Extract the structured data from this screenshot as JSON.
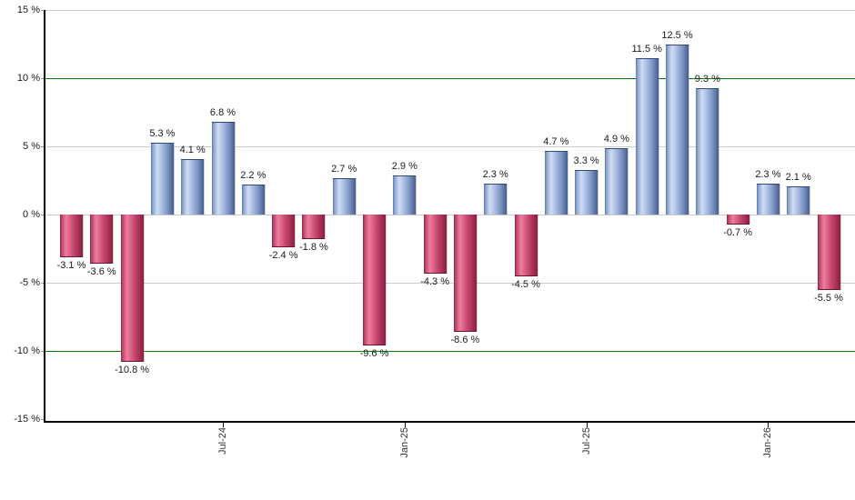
{
  "chart_data": {
    "type": "bar",
    "title": "",
    "xlabel": "",
    "ylabel": "",
    "ylim": [
      -15,
      15
    ],
    "grid": true,
    "legend_position": "none",
    "y_tick_labels": [
      "15 %",
      "10 %",
      "5 %",
      "0 %",
      "-5 %",
      "-10 %",
      "-15 %"
    ],
    "y_tick_values": [
      15,
      10,
      5,
      0,
      -5,
      -10,
      -15
    ],
    "highlight_gridline_values": [
      10,
      -10
    ],
    "values": [
      -3.1,
      -3.6,
      -10.8,
      5.3,
      4.1,
      6.8,
      2.2,
      -2.4,
      -1.8,
      2.7,
      -9.6,
      2.9,
      -4.3,
      -8.6,
      2.3,
      -4.5,
      4.7,
      3.3,
      4.9,
      11.5,
      12.5,
      9.3,
      -0.7,
      2.3,
      2.1,
      -5.5
    ],
    "bar_labels": [
      "-3.1 %",
      "-3.6 %",
      "-10.8 %",
      "5.3 %",
      "4.1 %",
      "6.8 %",
      "2.2 %",
      "-2.4 %",
      "-1.8 %",
      "2.7 %",
      "-9.6 %",
      "2.9 %",
      "-4.3 %",
      "-8.6 %",
      "2.3 %",
      "-4.5 %",
      "4.7 %",
      "3.3 %",
      "4.9 %",
      "11.5 %",
      "12.5 %",
      "9.3 %",
      "-0.7 %",
      "2.3 %",
      "2.1 %",
      "-5.5 %"
    ],
    "x_ticks": [
      {
        "label": "Jul-24",
        "bar_index": 5
      },
      {
        "label": "Jan-25",
        "bar_index": 11
      },
      {
        "label": "Jul-25",
        "bar_index": 17
      },
      {
        "label": "Jan-26",
        "bar_index": 23
      }
    ],
    "colors": {
      "positive_bar": "#9bb0da",
      "negative_bar": "#cc4d73",
      "highlight_gridline": "#008000",
      "gridline": "#cccccc",
      "axis": "#000000",
      "label_text": "#1a1a1a"
    }
  }
}
